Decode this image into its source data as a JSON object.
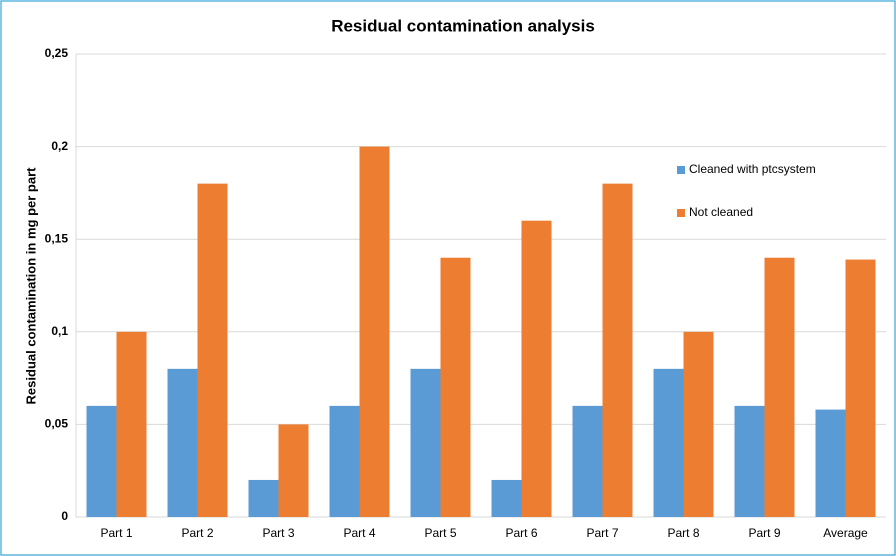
{
  "chart_data": {
    "type": "bar",
    "title": "Residual contamination analysis",
    "y_label": "Residual contamination in mg per part",
    "categories": [
      "Part 1",
      "Part 2",
      "Part 3",
      "Part 4",
      "Part 5",
      "Part 6",
      "Part 7",
      "Part 8",
      "Part 9",
      "Average"
    ],
    "series": [
      {
        "name": "Cleaned with ptcsystem",
        "color": "#5b9bd5",
        "values": [
          0.06,
          0.08,
          0.02,
          0.06,
          0.08,
          0.02,
          0.06,
          0.08,
          0.06,
          0.058
        ]
      },
      {
        "name": "Not cleaned",
        "color": "#ed7d31",
        "values": [
          0.1,
          0.18,
          0.05,
          0.2,
          0.14,
          0.16,
          0.18,
          0.1,
          0.14,
          0.139
        ]
      }
    ],
    "ylim": [
      0,
      0.25
    ],
    "yticks": [
      0,
      {
        "value": 0.05,
        "label": "0,05"
      },
      {
        "value": 0.1,
        "label": "0,1"
      },
      {
        "value": 0.15,
        "label": "0,15"
      },
      {
        "value": 0.2,
        "label": "0,2"
      },
      {
        "value": 0.25,
        "label": "0,25"
      }
    ],
    "grid": true,
    "legend": "right"
  }
}
